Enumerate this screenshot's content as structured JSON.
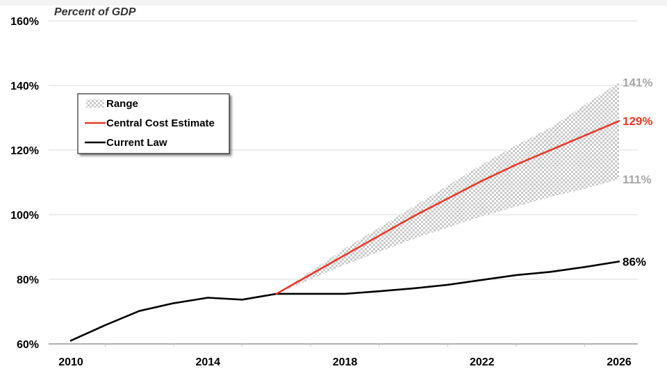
{
  "chart_data": {
    "type": "line",
    "title": "",
    "ylabel": "Percent of GDP",
    "xlabel": "",
    "xlim": [
      2010,
      2026
    ],
    "ylim": [
      60,
      160
    ],
    "x_ticks": [
      {
        "value": 2010,
        "label": "2010"
      },
      {
        "value": 2014,
        "label": "2014"
      },
      {
        "value": 2018,
        "label": "2018"
      },
      {
        "value": 2022,
        "label": "2022"
      },
      {
        "value": 2026,
        "label": "2026"
      }
    ],
    "y_ticks": [
      {
        "value": 60,
        "label": "60%"
      },
      {
        "value": 80,
        "label": "80%"
      },
      {
        "value": 100,
        "label": "100%"
      },
      {
        "value": 120,
        "label": "120%"
      },
      {
        "value": 140,
        "label": "140%"
      },
      {
        "value": 160,
        "label": "160%"
      }
    ],
    "grid": true,
    "legend_position": "upper-left",
    "legend": [
      {
        "label": "Range",
        "kind": "range"
      },
      {
        "label": "Central Cost Estimate",
        "kind": "central"
      },
      {
        "label": "Current Law",
        "kind": "current"
      }
    ],
    "colors": {
      "range": "#c9c9c9",
      "central": "#e8392b",
      "current": "#000000",
      "range_label": "#a6a6a6"
    },
    "range": {
      "x": [
        2016,
        2017,
        2018,
        2019,
        2020,
        2021,
        2022,
        2023,
        2024,
        2025,
        2026
      ],
      "low": [
        75.5,
        80.0,
        84.5,
        88.5,
        92.5,
        96.0,
        99.5,
        102.5,
        105.5,
        108.0,
        111.0
      ],
      "high": [
        75.5,
        82.5,
        89.5,
        96.0,
        102.5,
        109.0,
        115.5,
        121.5,
        127.0,
        134.0,
        141.0
      ]
    },
    "series": [
      {
        "key": "central",
        "x": [
          2016,
          2017,
          2018,
          2019,
          2020,
          2021,
          2022,
          2023,
          2024,
          2025,
          2026
        ],
        "values": [
          75.5,
          81.5,
          87.5,
          93.5,
          99.5,
          105.0,
          110.5,
          115.5,
          120.0,
          124.5,
          129.0
        ]
      },
      {
        "key": "current",
        "x": [
          2010,
          2011,
          2012,
          2013,
          2014,
          2015,
          2016,
          2017,
          2018,
          2019,
          2020,
          2021,
          2022,
          2023,
          2024,
          2025,
          2026
        ],
        "values": [
          61.0,
          65.8,
          70.2,
          72.6,
          74.3,
          73.7,
          75.5,
          75.5,
          75.5,
          76.3,
          77.2,
          78.3,
          79.8,
          81.3,
          82.3,
          83.8,
          85.5
        ]
      }
    ],
    "end_labels": [
      {
        "text": "141%",
        "value": 141,
        "color_key": "range_label"
      },
      {
        "text": "129%",
        "value": 129,
        "color_key": "central"
      },
      {
        "text": "111%",
        "value": 111,
        "color_key": "range_label"
      },
      {
        "text": "86%",
        "value": 85.5,
        "color_key": "current"
      }
    ]
  }
}
